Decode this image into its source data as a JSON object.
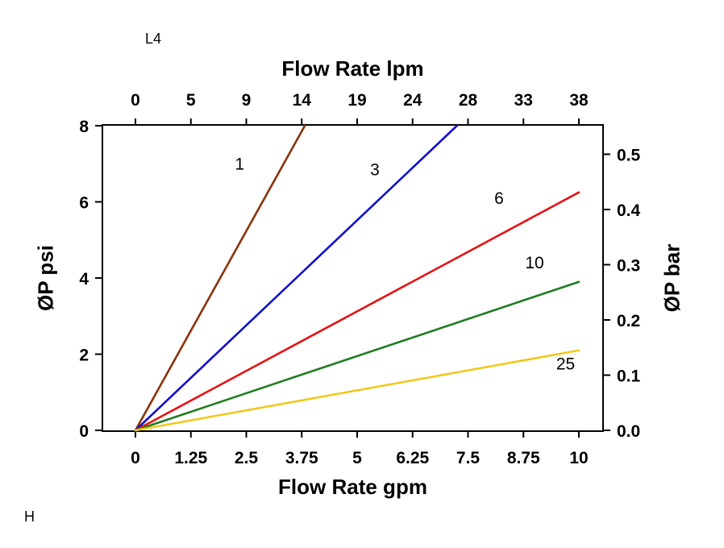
{
  "labels": {
    "top_left": "L4",
    "bottom_left": "H"
  },
  "chart_data": {
    "type": "line",
    "title": "",
    "x_axis_top": {
      "label": "Flow Rate lpm",
      "ticks": [
        "0",
        "5",
        "9",
        "14",
        "19",
        "24",
        "28",
        "33",
        "38"
      ]
    },
    "x_axis_bottom": {
      "label": "Flow Rate gpm",
      "ticks": [
        "0",
        "1.25",
        "2.5",
        "3.75",
        "5",
        "6.25",
        "7.5",
        "8.75",
        "10"
      ],
      "range": [
        0,
        10
      ]
    },
    "y_axis_left": {
      "label": "ØP psi",
      "ticks": [
        "0",
        "2",
        "4",
        "6",
        "8"
      ],
      "range": [
        0,
        8
      ]
    },
    "y_axis_right": {
      "label": "ØP bar",
      "ticks": [
        "0.0",
        "0.1",
        "0.2",
        "0.3",
        "0.4",
        "0.5"
      ],
      "psi_per_bar": 14.5
    },
    "grid": "off",
    "legend": "inline-labels",
    "series": [
      {
        "name": "1",
        "color": "#8a3208",
        "points": [
          [
            0,
            0
          ],
          [
            3.82,
            8
          ]
        ],
        "label": {
          "x": 2.35,
          "y": 6.85
        }
      },
      {
        "name": "3",
        "color": "#1010cc",
        "points": [
          [
            0,
            0
          ],
          [
            7.25,
            8
          ]
        ],
        "label": {
          "x": 5.4,
          "y": 6.7
        }
      },
      {
        "name": "6",
        "color": "#e51212",
        "points": [
          [
            0,
            0
          ],
          [
            10,
            6.25
          ]
        ],
        "label": {
          "x": 8.2,
          "y": 5.95
        }
      },
      {
        "name": "10",
        "color": "#1e7d1e",
        "points": [
          [
            0,
            0
          ],
          [
            10,
            3.9
          ]
        ],
        "label": {
          "x": 9.0,
          "y": 4.25
        }
      },
      {
        "name": "25",
        "color": "#f2c71d",
        "points": [
          [
            0,
            0
          ],
          [
            10,
            2.1
          ]
        ],
        "label": {
          "x": 9.7,
          "y": 1.6
        }
      }
    ]
  }
}
